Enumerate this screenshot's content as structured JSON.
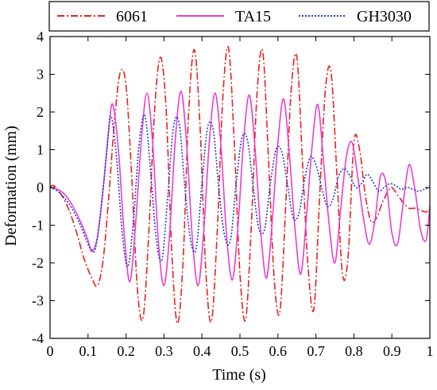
{
  "chart_data": {
    "type": "line",
    "xlabel": "Time (s)",
    "ylabel": "Deformation (mm)",
    "xlim": [
      0,
      1
    ],
    "ylim": [
      -4,
      4
    ],
    "xticks": [
      0,
      0.1,
      0.2,
      0.3,
      0.4,
      0.5,
      0.6,
      0.7,
      0.8,
      0.9,
      1
    ],
    "xtick_labels": [
      "0",
      "0.1",
      "0.2",
      "0.3",
      "0.4",
      "0.5",
      "0.6",
      "0.7",
      "0.8",
      "0.9",
      "1"
    ],
    "yticks": [
      -4,
      -3,
      -2,
      -1,
      0,
      1,
      2,
      3,
      4
    ],
    "ytick_labels": [
      "-4",
      "-3",
      "-2",
      "-1",
      "0",
      "1",
      "2",
      "3",
      "4"
    ],
    "grid": false,
    "legend_position": "top",
    "series": [
      {
        "name": "6061",
        "color": "#e8211b",
        "dash": "dash-dot",
        "x": [
          0,
          0.01,
          0.03,
          0.05,
          0.07,
          0.09,
          0.11,
          0.125,
          0.14,
          0.155,
          0.17,
          0.185,
          0.2,
          0.215,
          0.23,
          0.245,
          0.26,
          0.275,
          0.29,
          0.305,
          0.32,
          0.335,
          0.35,
          0.365,
          0.38,
          0.395,
          0.41,
          0.425,
          0.44,
          0.455,
          0.47,
          0.485,
          0.5,
          0.515,
          0.53,
          0.545,
          0.56,
          0.575,
          0.59,
          0.605,
          0.62,
          0.635,
          0.65,
          0.665,
          0.68,
          0.695,
          0.71,
          0.725,
          0.74,
          0.755,
          0.77,
          0.785,
          0.8,
          0.815,
          0.83,
          0.845,
          0.86,
          0.875,
          0.89,
          0.9,
          0.915,
          0.93,
          0.945,
          0.96,
          0.975,
          0.99,
          1.0
        ],
        "y": [
          0,
          0.05,
          -0.2,
          -0.6,
          -1.2,
          -1.9,
          -2.4,
          -2.6,
          -1.9,
          -0.2,
          1.8,
          3.05,
          2.7,
          0.3,
          -2.7,
          -3.45,
          -1.2,
          2.0,
          3.45,
          2.2,
          -1.6,
          -3.6,
          -2.0,
          2.0,
          3.65,
          1.6,
          -2.2,
          -3.55,
          -1.2,
          2.4,
          3.7,
          1.2,
          -2.3,
          -3.5,
          -1.0,
          2.5,
          3.6,
          0.8,
          -2.4,
          -3.3,
          -0.6,
          2.6,
          3.45,
          0.6,
          -2.2,
          -3.2,
          -0.2,
          2.6,
          3.05,
          0.4,
          -2.3,
          -1.8,
          1.2,
          1.0,
          -0.2,
          -0.9,
          -0.8,
          -0.4,
          -0.1,
          0,
          -0.2,
          -0.4,
          -0.55,
          -0.55,
          -0.6,
          -0.65,
          -0.55
        ]
      },
      {
        "name": "TA15",
        "color": "#e83fd2",
        "dash": "solid",
        "x": [
          0,
          0.02,
          0.04,
          0.06,
          0.08,
          0.1,
          0.11,
          0.125,
          0.14,
          0.155,
          0.165,
          0.18,
          0.195,
          0.21,
          0.225,
          0.24,
          0.255,
          0.27,
          0.285,
          0.3,
          0.315,
          0.33,
          0.345,
          0.36,
          0.375,
          0.39,
          0.405,
          0.42,
          0.435,
          0.45,
          0.465,
          0.48,
          0.495,
          0.51,
          0.525,
          0.54,
          0.555,
          0.57,
          0.585,
          0.6,
          0.615,
          0.63,
          0.645,
          0.66,
          0.675,
          0.69,
          0.705,
          0.72,
          0.735,
          0.75,
          0.765,
          0.78,
          0.795,
          0.81,
          0.825,
          0.84,
          0.855,
          0.87,
          0.885,
          0.9,
          0.915,
          0.93,
          0.945,
          0.96,
          0.975,
          0.99,
          1.0
        ],
        "y": [
          0,
          -0.05,
          -0.2,
          -0.5,
          -0.9,
          -1.4,
          -1.7,
          -1.3,
          0.0,
          1.6,
          2.2,
          1.0,
          -1.2,
          -2.5,
          -1.0,
          1.2,
          2.5,
          1.2,
          -1.4,
          -2.6,
          -1.2,
          1.3,
          2.55,
          1.1,
          -1.4,
          -2.6,
          -1.1,
          1.3,
          2.5,
          1.1,
          -1.3,
          -2.45,
          -1.0,
          1.3,
          2.45,
          1.0,
          -1.2,
          -2.4,
          -0.9,
          1.2,
          2.35,
          0.9,
          -1.1,
          -2.3,
          -0.8,
          1.1,
          2.2,
          0.7,
          -1.0,
          -2.0,
          -0.6,
          0.8,
          1.2,
          0.3,
          -0.8,
          -1.5,
          -0.9,
          0.3,
          0.1,
          -1.2,
          -1.5,
          -0.4,
          0.6,
          0.0,
          -1.1,
          -1.4,
          -0.5
        ]
      },
      {
        "name": "GH3030",
        "color": "#1f3bd6",
        "dash": "dotted",
        "x": [
          0,
          0.02,
          0.04,
          0.06,
          0.08,
          0.1,
          0.11,
          0.12,
          0.135,
          0.15,
          0.16,
          0.175,
          0.19,
          0.205,
          0.22,
          0.235,
          0.25,
          0.265,
          0.28,
          0.295,
          0.31,
          0.325,
          0.34,
          0.355,
          0.37,
          0.385,
          0.4,
          0.415,
          0.43,
          0.445,
          0.46,
          0.475,
          0.49,
          0.505,
          0.52,
          0.535,
          0.55,
          0.565,
          0.58,
          0.595,
          0.61,
          0.625,
          0.64,
          0.655,
          0.67,
          0.685,
          0.7,
          0.715,
          0.73,
          0.745,
          0.76,
          0.775,
          0.79,
          0.805,
          0.82,
          0.835,
          0.85,
          0.865,
          0.88,
          0.895,
          0.91,
          0.925,
          0.94,
          0.955,
          0.97,
          0.985,
          1.0
        ],
        "y": [
          0,
          -0.1,
          -0.3,
          -0.6,
          -1.0,
          -1.5,
          -1.65,
          -1.6,
          -0.5,
          1.0,
          1.9,
          0.8,
          -1.2,
          -2.1,
          -0.8,
          1.2,
          1.9,
          0.4,
          -1.4,
          -1.9,
          -0.2,
          1.6,
          1.7,
          0.0,
          -1.4,
          -1.6,
          0.1,
          1.6,
          1.5,
          -0.1,
          -1.3,
          -1.4,
          0.1,
          1.3,
          1.25,
          0.0,
          -1.1,
          -1.1,
          0.1,
          1.0,
          0.95,
          0.1,
          -0.8,
          -0.7,
          0.2,
          0.8,
          0.6,
          0.0,
          -0.5,
          -0.3,
          0.3,
          0.5,
          0.3,
          0.0,
          0.1,
          0.35,
          0.15,
          -0.1,
          0.0,
          0.1,
          0.05,
          -0.05,
          0.0,
          -0.05,
          -0.1,
          -0.05,
          0.0
        ]
      }
    ]
  }
}
